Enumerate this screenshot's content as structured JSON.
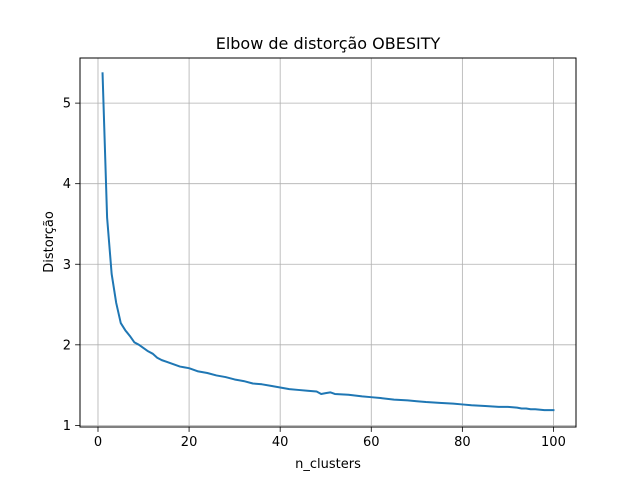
{
  "chart_data": {
    "type": "line",
    "title": "Elbow de distorção OBESITY",
    "xlabel": "n_clusters",
    "ylabel": "Distorção",
    "xlim": [
      -3.95,
      104.95
    ],
    "ylim": [
      0.98,
      5.56
    ],
    "xticks": [
      0,
      20,
      40,
      60,
      80,
      100
    ],
    "yticks": [
      1,
      2,
      3,
      4,
      5
    ],
    "grid": true,
    "series": [
      {
        "name": "distorcao",
        "color": "#1f77b4",
        "x": [
          1,
          2,
          3,
          4,
          5,
          6,
          7,
          8,
          9,
          10,
          11,
          12,
          13,
          14,
          15,
          16,
          17,
          18,
          19,
          20,
          22,
          24,
          26,
          28,
          30,
          32,
          34,
          36,
          38,
          40,
          42,
          44,
          46,
          48,
          49,
          50,
          51,
          52,
          55,
          58,
          60,
          62,
          65,
          68,
          70,
          72,
          75,
          78,
          80,
          82,
          85,
          88,
          90,
          92,
          93,
          94,
          95,
          96,
          98,
          100
        ],
        "y": [
          5.37,
          3.58,
          2.88,
          2.52,
          2.27,
          2.18,
          2.11,
          2.03,
          2.0,
          1.96,
          1.92,
          1.89,
          1.84,
          1.81,
          1.79,
          1.77,
          1.75,
          1.73,
          1.72,
          1.71,
          1.67,
          1.65,
          1.62,
          1.6,
          1.57,
          1.55,
          1.52,
          1.51,
          1.49,
          1.47,
          1.45,
          1.44,
          1.43,
          1.42,
          1.39,
          1.4,
          1.41,
          1.39,
          1.38,
          1.36,
          1.35,
          1.34,
          1.32,
          1.31,
          1.3,
          1.29,
          1.28,
          1.27,
          1.26,
          1.25,
          1.24,
          1.23,
          1.23,
          1.22,
          1.21,
          1.21,
          1.2,
          1.2,
          1.19,
          1.19
        ]
      }
    ]
  }
}
